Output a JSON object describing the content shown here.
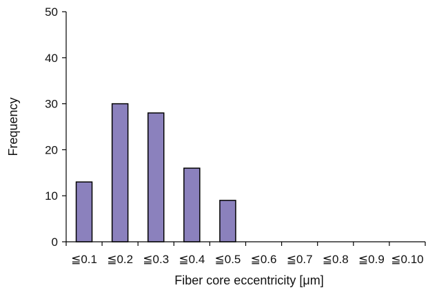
{
  "chart_data": {
    "type": "bar",
    "title": "",
    "xlabel": "Fiber core eccentricity [μm]",
    "ylabel": "Frequency",
    "categories": [
      "≦0.1",
      "≦0.2",
      "≦0.3",
      "≦0.4",
      "≦0.5",
      "≦0.6",
      "≦0.7",
      "≦0.8",
      "≦0.9",
      "≦0.10"
    ],
    "values": [
      13,
      30,
      28,
      16,
      9,
      0,
      0,
      0,
      0,
      0
    ],
    "ylim": [
      0,
      50
    ],
    "yticks": [
      0,
      10,
      20,
      30,
      40,
      50
    ],
    "grid": false,
    "legend": "none",
    "colors": {
      "bar_fill": "#8b81bd",
      "bar_stroke": "#000000",
      "axis": "#000000"
    }
  }
}
